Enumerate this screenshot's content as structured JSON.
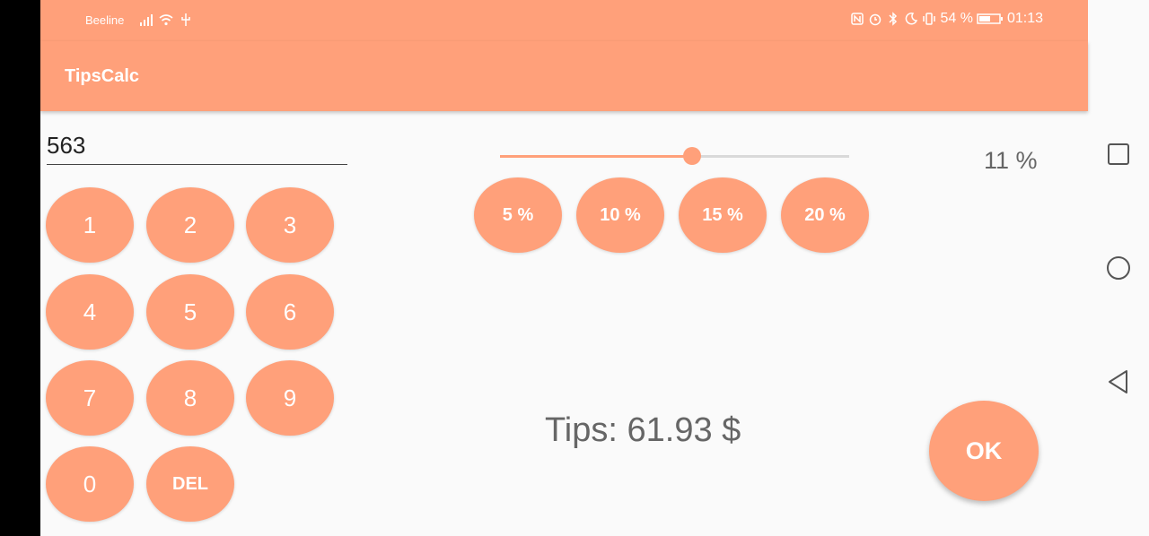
{
  "status_bar": {
    "carrier": "Beeline",
    "battery_percent": "54 %",
    "time": "01:13"
  },
  "app_bar": {
    "title": "TipsCalc"
  },
  "amount": {
    "value": "563"
  },
  "keypad": {
    "keys": [
      "1",
      "2",
      "3",
      "4",
      "5",
      "6",
      "7",
      "8",
      "9",
      "0"
    ],
    "del_label": "DEL"
  },
  "slider": {
    "value_percent": 11,
    "min": 0,
    "max": 20
  },
  "percent_readout": "11 %",
  "presets": [
    "5 %",
    "10 %",
    "15 %",
    "20 %"
  ],
  "result": {
    "text": "Tips: 61.93 $"
  },
  "ok_label": "OK",
  "colors": {
    "accent": "#ffa07a",
    "text_gray": "#666666"
  },
  "nav_icons": [
    "recent-apps-icon",
    "home-icon",
    "back-icon"
  ]
}
